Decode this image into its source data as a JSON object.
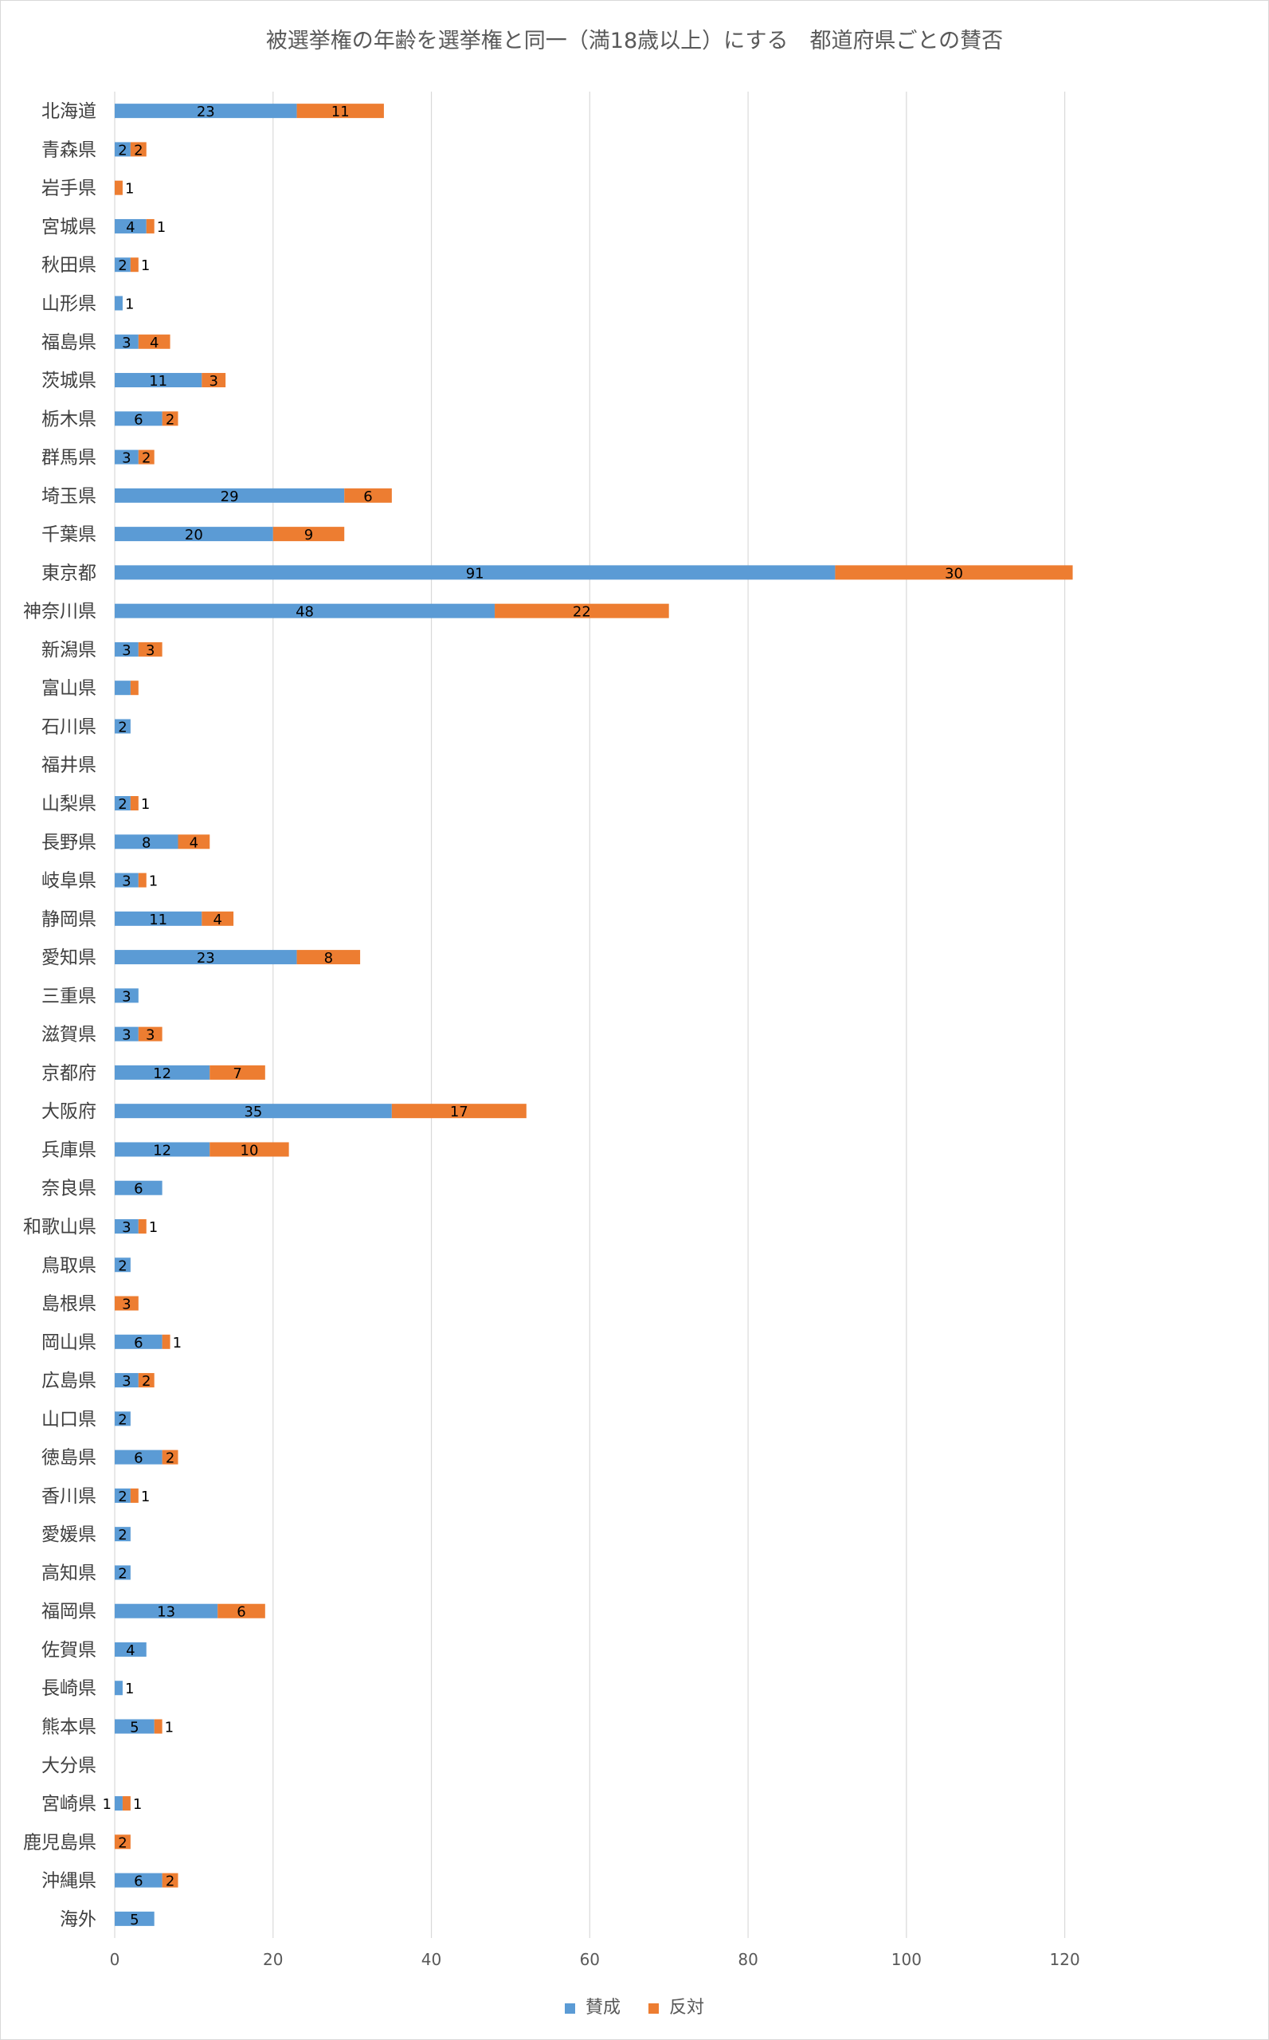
{
  "chart_data": {
    "type": "bar",
    "orientation": "horizontal",
    "stacked": true,
    "title": "被選挙権の年齢を選挙権と同一（満18歳以上）にする　都道府県ごとの賛否",
    "categories": [
      "北海道",
      "青森県",
      "岩手県",
      "宮城県",
      "秋田県",
      "山形県",
      "福島県",
      "茨城県",
      "栃木県",
      "群馬県",
      "埼玉県",
      "千葉県",
      "東京都",
      "神奈川県",
      "新潟県",
      "富山県",
      "石川県",
      "福井県",
      "山梨県",
      "長野県",
      "岐阜県",
      "静岡県",
      "愛知県",
      "三重県",
      "滋賀県",
      "京都府",
      "大阪府",
      "兵庫県",
      "奈良県",
      "和歌山県",
      "鳥取県",
      "島根県",
      "岡山県",
      "広島県",
      "山口県",
      "徳島県",
      "香川県",
      "愛媛県",
      "高知県",
      "福岡県",
      "佐賀県",
      "長崎県",
      "熊本県",
      "大分県",
      "宮崎県",
      "鹿児島県",
      "沖縄県",
      "海外"
    ],
    "series": [
      {
        "name": "賛成",
        "color": "#5B9BD5",
        "values": [
          23,
          2,
          0,
          4,
          2,
          1,
          3,
          11,
          6,
          3,
          29,
          20,
          91,
          48,
          3,
          2,
          2,
          0,
          2,
          8,
          3,
          11,
          23,
          3,
          3,
          12,
          35,
          12,
          6,
          3,
          2,
          0,
          6,
          3,
          2,
          6,
          2,
          2,
          2,
          13,
          4,
          1,
          5,
          0,
          1,
          0,
          6,
          5
        ],
        "labels": [
          "23",
          "2",
          "",
          "4",
          "2",
          "1",
          "3",
          "11",
          "6",
          "3",
          "29",
          "20",
          "91",
          "48",
          "3",
          "",
          "2",
          "",
          "2",
          "8",
          "3",
          "11",
          "23",
          "3",
          "3",
          "12",
          "35",
          "12",
          "6",
          "3",
          "2",
          "",
          "6",
          "3",
          "2",
          "6",
          "2",
          "2",
          "2",
          "13",
          "4",
          "1",
          "5",
          "",
          "1",
          "",
          "6",
          "5"
        ]
      },
      {
        "name": "反対",
        "color": "#ED7D31",
        "values": [
          11,
          2,
          1,
          1,
          1,
          0,
          4,
          3,
          2,
          2,
          6,
          9,
          30,
          22,
          3,
          1,
          0,
          0,
          1,
          4,
          1,
          4,
          8,
          0,
          3,
          7,
          17,
          10,
          0,
          1,
          0,
          3,
          1,
          2,
          0,
          2,
          1,
          0,
          0,
          6,
          0,
          0,
          1,
          0,
          1,
          2,
          2,
          0
        ],
        "labels": [
          "11",
          "2",
          "1",
          "1",
          "1",
          "",
          "4",
          "3",
          "2",
          "2",
          "6",
          "9",
          "30",
          "22",
          "3",
          "",
          "",
          "",
          "1",
          "4",
          "1",
          "4",
          "8",
          "",
          "3",
          "7",
          "17",
          "10",
          "",
          "1",
          "",
          "3",
          "1",
          "2",
          "",
          "2",
          "1",
          "",
          "",
          "6",
          "",
          "",
          "1",
          "",
          "1",
          "2",
          "2",
          ""
        ]
      }
    ],
    "xlim": [
      0,
      130
    ],
    "xticks": [
      "0",
      "20",
      "40",
      "60",
      "80",
      "100",
      "120"
    ],
    "grid": true,
    "legend": "bottom"
  }
}
